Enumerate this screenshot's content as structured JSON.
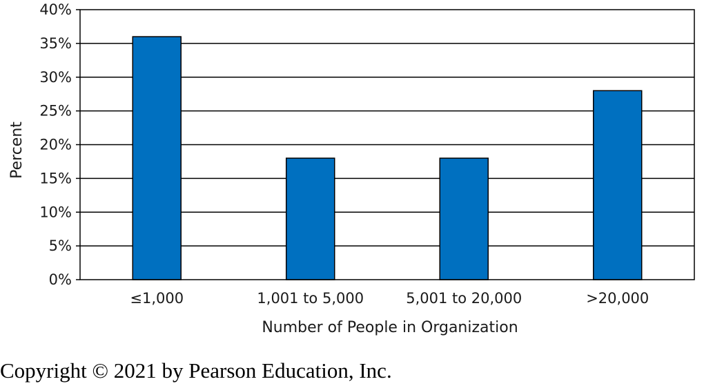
{
  "chart_data": {
    "type": "bar",
    "categories": [
      "≤1,000",
      "1,001 to 5,000",
      "5,001 to 20,000",
      ">20,000"
    ],
    "values": [
      36,
      18,
      18,
      28
    ],
    "xlabel": "Number of People in Organization",
    "ylabel": "Percent",
    "ylim": [
      0,
      40
    ],
    "yticks": [
      "0%",
      "5%",
      "10%",
      "15%",
      "20%",
      "25%",
      "30%",
      "35%",
      "40%"
    ],
    "grid": true,
    "bar_color": "#0070c0"
  },
  "footer": {
    "copyright": "Copyright © 2021 by Pearson Education, Inc."
  }
}
